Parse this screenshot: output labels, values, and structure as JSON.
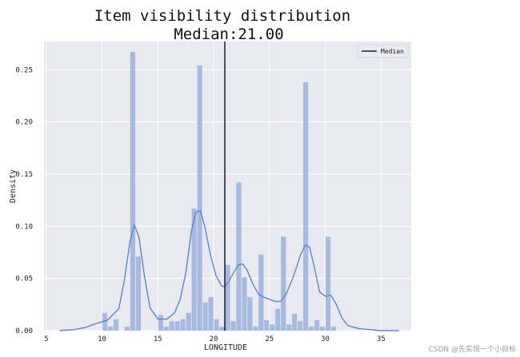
{
  "chart_data": {
    "type": "bar",
    "title": "Item visibility distribution",
    "subtitle": "Median:21.00",
    "xlabel": "LONGITUDE",
    "ylabel": "Density",
    "xlim": [
      4.8,
      37.7
    ],
    "ylim": [
      0,
      0.277
    ],
    "xticks": [
      5,
      10,
      15,
      20,
      25,
      30,
      35
    ],
    "yticks": [
      0.0,
      0.05,
      0.1,
      0.15,
      0.2,
      0.25
    ],
    "ytick_labels": [
      "0.00",
      "0.05",
      "0.10",
      "0.15",
      "0.20",
      "0.25"
    ],
    "grid": true,
    "legend_position": "top-right",
    "histogram": {
      "bin_width": 0.5,
      "bins": [
        {
          "x": 10.0,
          "density": 0.017
        },
        {
          "x": 10.5,
          "density": 0.004
        },
        {
          "x": 11.0,
          "density": 0.011
        },
        {
          "x": 12.0,
          "density": 0.004
        },
        {
          "x": 12.5,
          "density": 0.267
        },
        {
          "x": 13.0,
          "density": 0.071
        },
        {
          "x": 15.0,
          "density": 0.015
        },
        {
          "x": 15.5,
          "density": 0.004
        },
        {
          "x": 16.0,
          "density": 0.009
        },
        {
          "x": 16.5,
          "density": 0.009
        },
        {
          "x": 17.0,
          "density": 0.011
        },
        {
          "x": 17.5,
          "density": 0.017
        },
        {
          "x": 18.0,
          "density": 0.117
        },
        {
          "x": 18.5,
          "density": 0.254
        },
        {
          "x": 19.0,
          "density": 0.027
        },
        {
          "x": 19.5,
          "density": 0.032
        },
        {
          "x": 20.0,
          "density": 0.011
        },
        {
          "x": 20.5,
          "density": 0.004
        },
        {
          "x": 21.0,
          "density": 0.063
        },
        {
          "x": 21.5,
          "density": 0.009
        },
        {
          "x": 22.0,
          "density": 0.142
        },
        {
          "x": 22.5,
          "density": 0.051
        },
        {
          "x": 23.0,
          "density": 0.032
        },
        {
          "x": 23.5,
          "density": 0.004
        },
        {
          "x": 24.0,
          "density": 0.073
        },
        {
          "x": 24.5,
          "density": 0.01
        },
        {
          "x": 25.0,
          "density": 0.006
        },
        {
          "x": 25.5,
          "density": 0.021
        },
        {
          "x": 26.0,
          "density": 0.09
        },
        {
          "x": 26.5,
          "density": 0.006
        },
        {
          "x": 27.0,
          "density": 0.016
        },
        {
          "x": 27.5,
          "density": 0.009
        },
        {
          "x": 28.0,
          "density": 0.238
        },
        {
          "x": 28.5,
          "density": 0.004
        },
        {
          "x": 29.0,
          "density": 0.01
        },
        {
          "x": 29.5,
          "density": 0.004
        },
        {
          "x": 30.0,
          "density": 0.09
        },
        {
          "x": 30.5,
          "density": 0.004
        }
      ]
    },
    "kde": {
      "x": [
        6.2,
        7.5,
        8.5,
        9.5,
        10.5,
        11.5,
        12.0,
        12.5,
        12.9,
        13.3,
        13.8,
        14.3,
        15.0,
        15.8,
        16.5,
        17.0,
        17.5,
        18.0,
        18.4,
        18.8,
        19.2,
        19.7,
        20.2,
        20.7,
        21.0,
        21.4,
        21.8,
        22.2,
        22.6,
        23.0,
        23.5,
        24.0,
        24.5,
        25.0,
        25.5,
        26.0,
        26.5,
        27.0,
        27.4,
        27.8,
        28.2,
        28.6,
        29.0,
        29.5,
        30.0,
        30.5,
        31.0,
        31.5,
        32.0,
        33.0,
        34.0,
        35.0,
        36.6
      ],
      "y": [
        0.0,
        0.001,
        0.003,
        0.007,
        0.01,
        0.021,
        0.048,
        0.085,
        0.101,
        0.09,
        0.052,
        0.022,
        0.011,
        0.011,
        0.017,
        0.03,
        0.055,
        0.095,
        0.113,
        0.115,
        0.1,
        0.073,
        0.053,
        0.043,
        0.042,
        0.048,
        0.056,
        0.063,
        0.064,
        0.058,
        0.045,
        0.035,
        0.032,
        0.03,
        0.028,
        0.028,
        0.035,
        0.048,
        0.06,
        0.073,
        0.082,
        0.08,
        0.062,
        0.037,
        0.033,
        0.034,
        0.025,
        0.012,
        0.005,
        0.002,
        0.001,
        0.0,
        0.0
      ]
    },
    "median_line": {
      "x": 21.0,
      "label": "Median"
    },
    "colors": {
      "plot_background": "#e9e9f1",
      "grid": "#ffffff",
      "bar": "#a6badf",
      "kde_line": "#5b86cc",
      "median_line": "#1b1b2e"
    }
  },
  "watermark": "CSDN @先实现一个小目标"
}
